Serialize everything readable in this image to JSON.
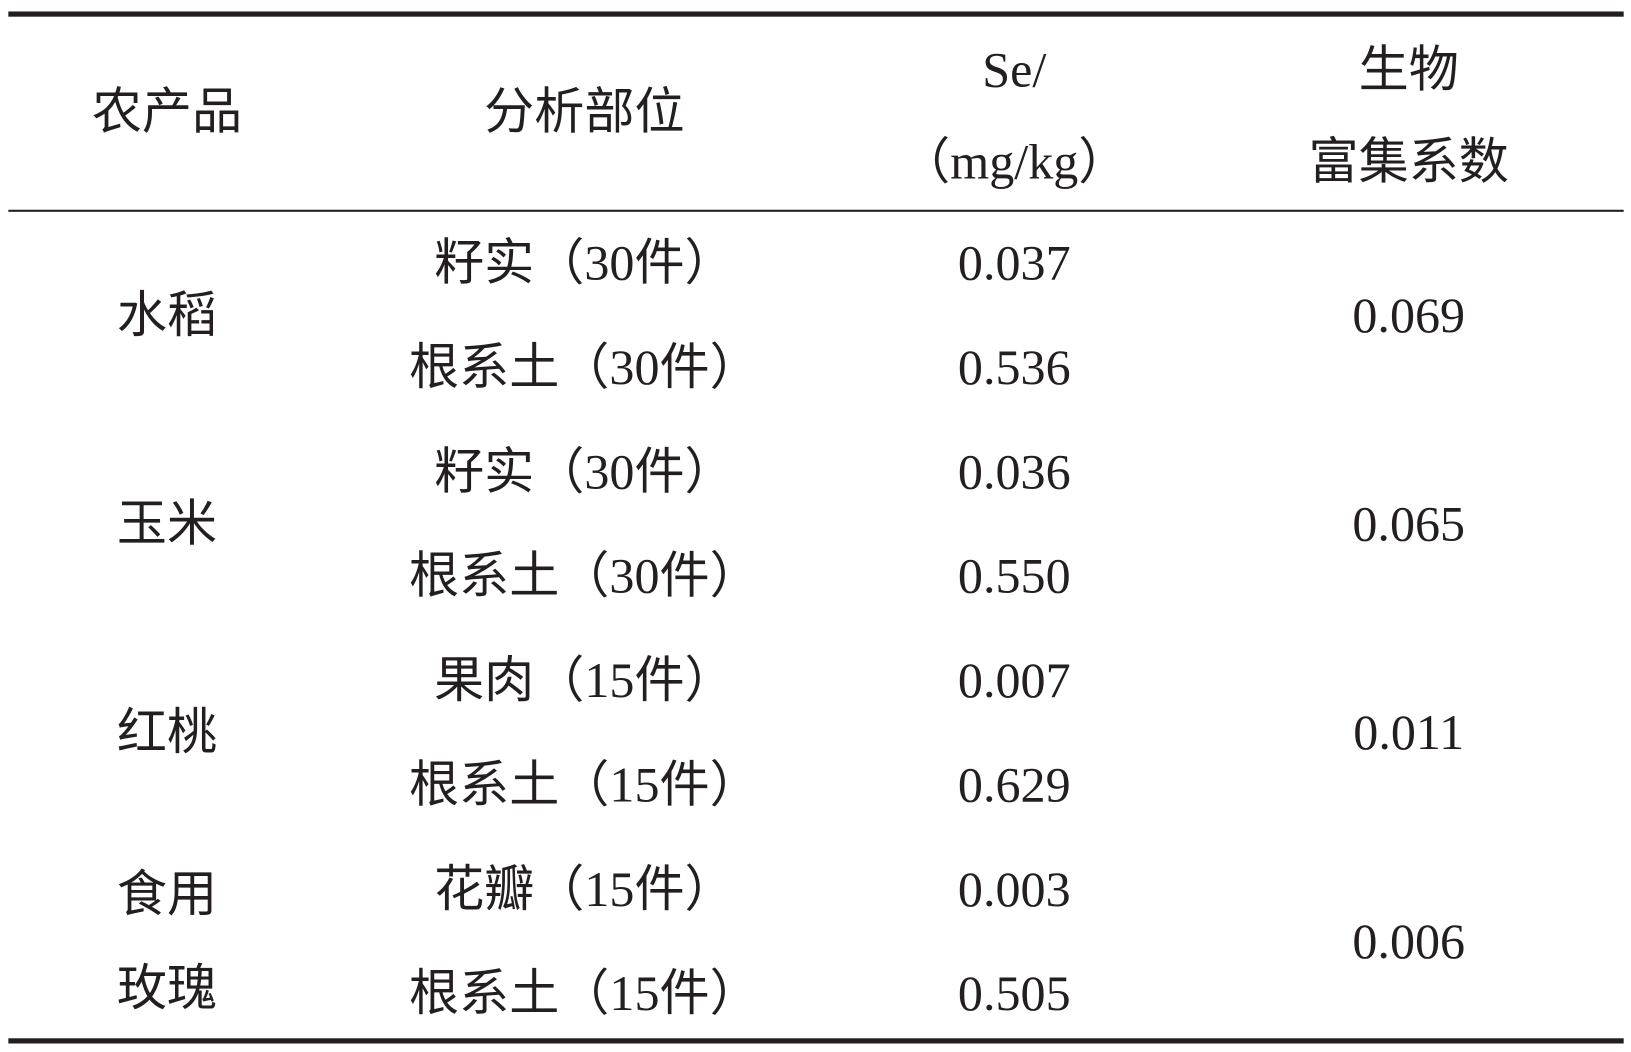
{
  "table": {
    "header": [
      [
        "农产品"
      ],
      [
        "分析部位"
      ],
      [
        "Se/",
        "（mg/kg）"
      ],
      [
        "生物",
        "富集系数"
      ]
    ],
    "groups": [
      {
        "crop": [
          "水稻"
        ],
        "rows": [
          [
            "籽实（30件）",
            "0.037"
          ],
          [
            "根系土（30件）",
            "0.536"
          ]
        ],
        "factor": "0.069"
      },
      {
        "crop": [
          "玉米"
        ],
        "rows": [
          [
            "籽实（30件）",
            "0.036"
          ],
          [
            "根系土（30件）",
            "0.550"
          ]
        ],
        "factor": "0.065"
      },
      {
        "crop": [
          "红桃"
        ],
        "rows": [
          [
            "果肉（15件）",
            "0.007"
          ],
          [
            "根系土（15件）",
            "0.629"
          ]
        ],
        "factor": "0.011"
      },
      {
        "crop": [
          "食用",
          "玫瑰"
        ],
        "rows": [
          [
            "花瓣（15件）",
            "0.003"
          ],
          [
            "根系土（15件）",
            "0.505"
          ]
        ],
        "factor": "0.006"
      }
    ]
  }
}
